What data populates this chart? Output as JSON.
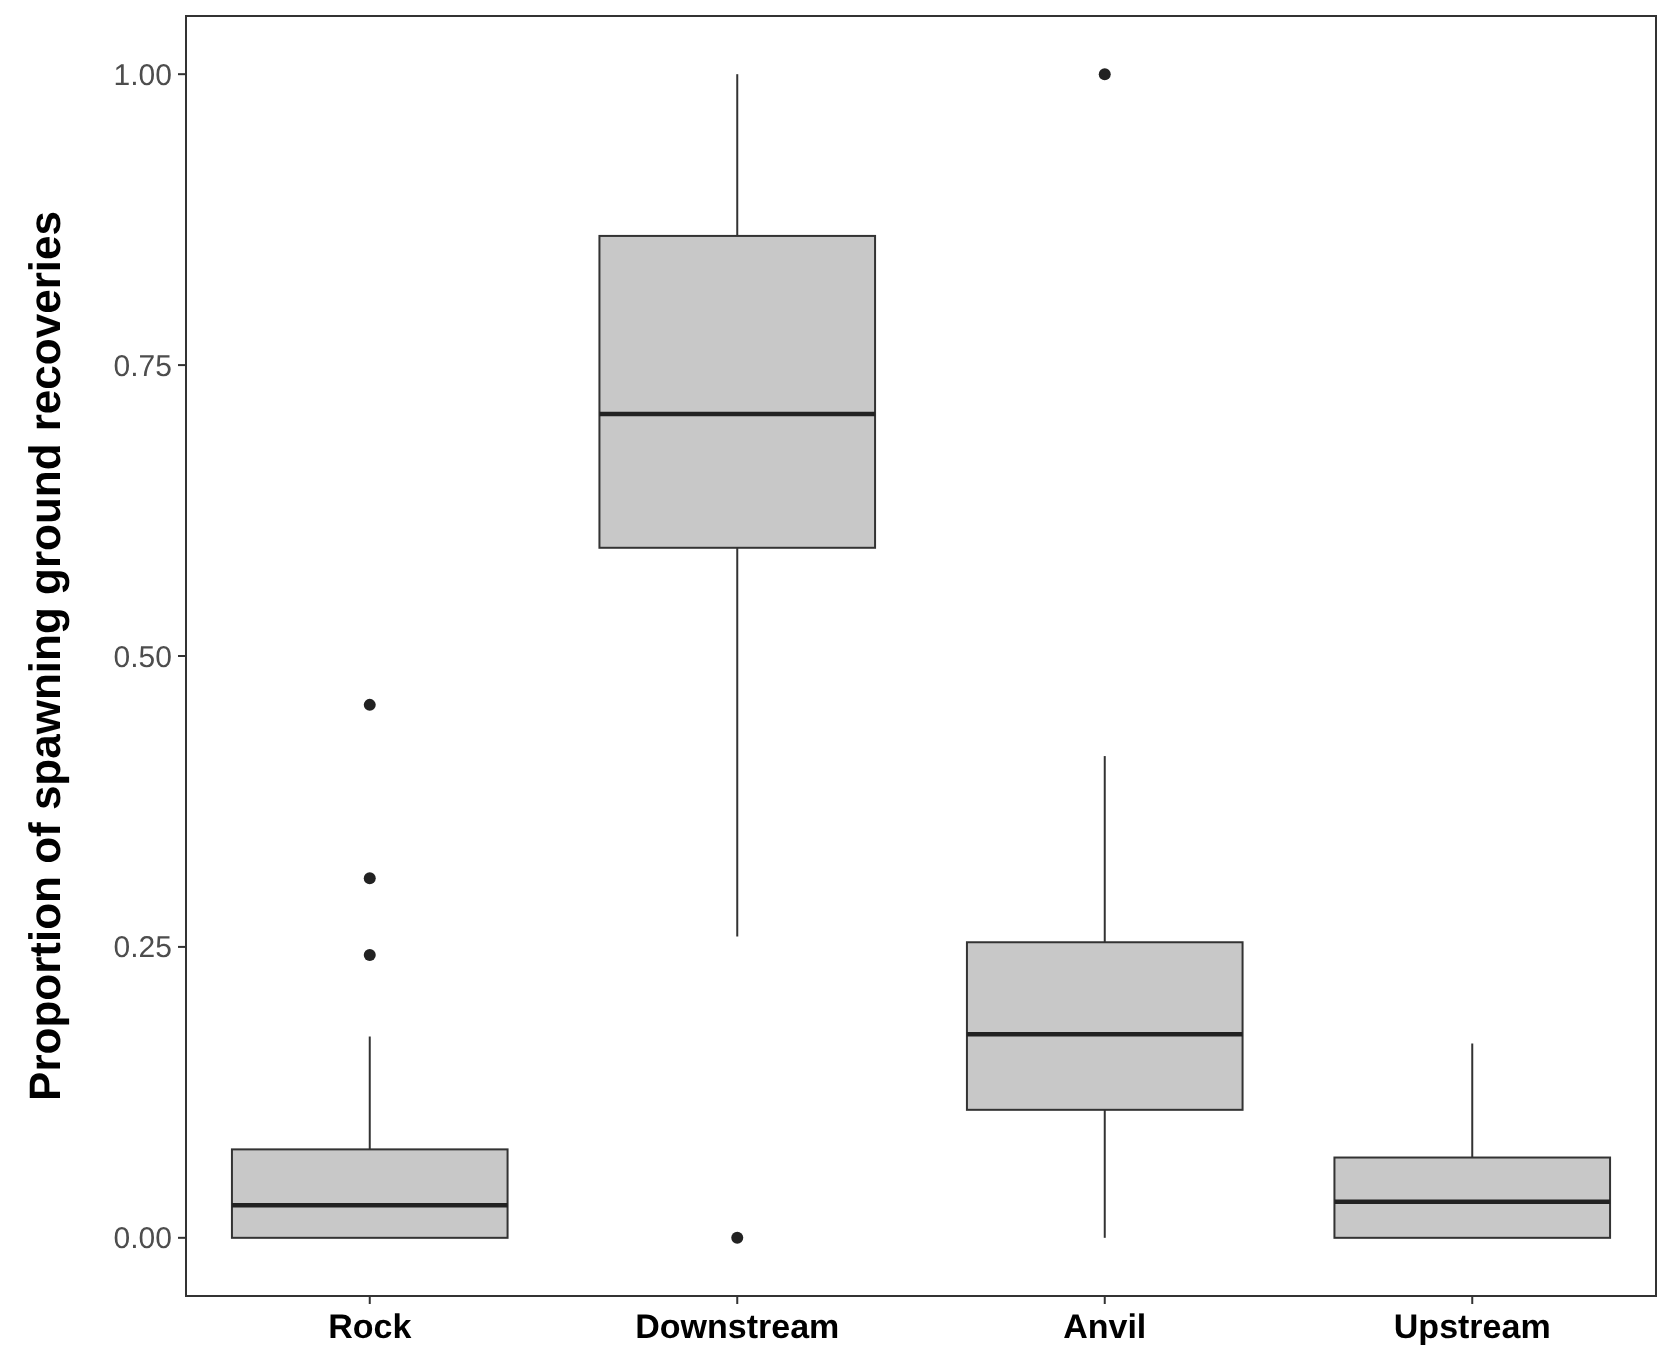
{
  "chart_data": {
    "type": "box",
    "ylabel": "Proportion of spawning ground recoveries",
    "categories": [
      "Rock",
      "Downstream",
      "Anvil",
      "Upstream"
    ],
    "boxes": [
      {
        "low": 0,
        "q1": 0,
        "median": 0.028,
        "q3": 0.076,
        "high": 0.173,
        "outliers": [
          0.458,
          0.309,
          0.243
        ]
      },
      {
        "low": 0.259,
        "q1": 0.593,
        "median": 0.708,
        "q3": 0.861,
        "high": 1,
        "outliers": [
          0
        ]
      },
      {
        "low": 0,
        "q1": 0.11,
        "median": 0.175,
        "q3": 0.254,
        "high": 0.414,
        "outliers": [
          1
        ]
      },
      {
        "low": 0,
        "q1": 0,
        "median": 0.031,
        "q3": 0.069,
        "high": 0.167
      }
    ],
    "color": "#c8c8c8",
    "ylim": [
      -0.05,
      1.05
    ],
    "yticks": [
      {
        "value": 0,
        "label": "0.00"
      },
      {
        "value": 0.25,
        "label": "0.25"
      },
      {
        "value": 0.5,
        "label": "0.50"
      },
      {
        "value": 0.75,
        "label": "0.75"
      },
      {
        "value": 1,
        "label": "1.00"
      }
    ],
    "grid": false
  }
}
